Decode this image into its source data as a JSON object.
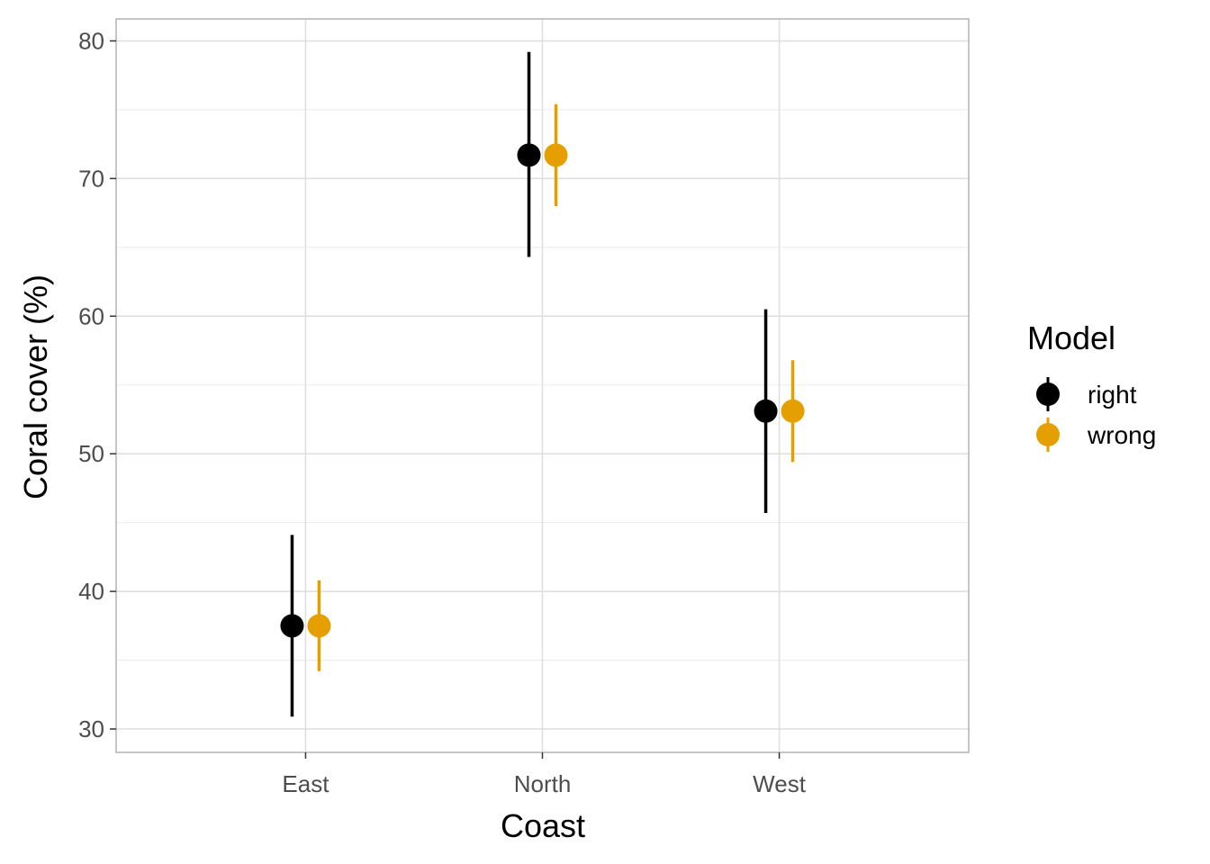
{
  "chart_data": {
    "type": "pointrange",
    "xlabel": "Coast",
    "ylabel": "Coral cover (%)",
    "categories": [
      "East",
      "North",
      "West"
    ],
    "ylim": [
      28.3,
      81.6
    ],
    "yticks": [
      30,
      40,
      50,
      60,
      70,
      80
    ],
    "grid": true,
    "legend": {
      "title": "Model",
      "position": "right"
    },
    "series": [
      {
        "name": "right",
        "color": "#000000",
        "values": [
          37.5,
          71.7,
          53.1
        ],
        "lower": [
          30.9,
          64.3,
          45.7
        ],
        "upper": [
          44.1,
          79.2,
          60.5
        ]
      },
      {
        "name": "wrong",
        "color": "#E69F00",
        "values": [
          37.5,
          71.7,
          53.1
        ],
        "lower": [
          34.2,
          68.0,
          49.4
        ],
        "upper": [
          40.8,
          75.4,
          56.8
        ]
      }
    ]
  }
}
